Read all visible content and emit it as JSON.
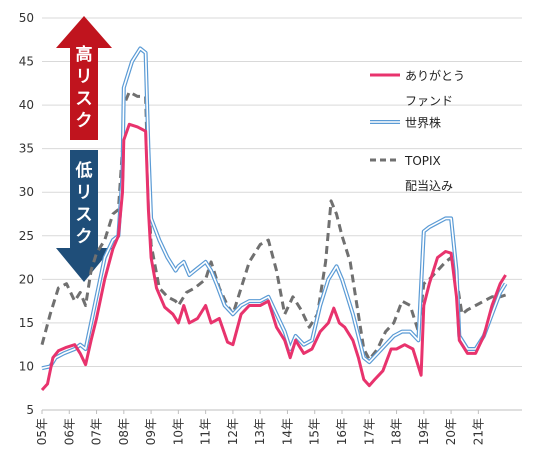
{
  "chart_data": {
    "type": "line",
    "title": "",
    "xlabel": "",
    "ylabel": "",
    "ylim": [
      5,
      50
    ],
    "yticks": [
      5,
      10,
      15,
      20,
      25,
      30,
      35,
      40,
      45,
      50
    ],
    "xlim": [
      2005.0,
      2022.6
    ],
    "xticks": [
      {
        "x": 2005.0,
        "label": "05年"
      },
      {
        "x": 2006.0,
        "label": "06年"
      },
      {
        "x": 2007.0,
        "label": "07年"
      },
      {
        "x": 2008.0,
        "label": "08年"
      },
      {
        "x": 2009.0,
        "label": "09年"
      },
      {
        "x": 2010.0,
        "label": "10年"
      },
      {
        "x": 2011.0,
        "label": "11年"
      },
      {
        "x": 2012.0,
        "label": "12年"
      },
      {
        "x": 2013.0,
        "label": "13年"
      },
      {
        "x": 2014.0,
        "label": "14年"
      },
      {
        "x": 2015.0,
        "label": "15年"
      },
      {
        "x": 2016.0,
        "label": "16年"
      },
      {
        "x": 2017.0,
        "label": "17年"
      },
      {
        "x": 2018.0,
        "label": "18年"
      },
      {
        "x": 2019.0,
        "label": "19年"
      },
      {
        "x": 2020.0,
        "label": "20年"
      },
      {
        "x": 2021.0,
        "label": "21年"
      }
    ],
    "grid": true,
    "legend_position": "right",
    "risk_arrow": {
      "up_label": "高リスク",
      "down_label": "低リスク",
      "up_color": "#c0141e",
      "down_color": "#1f4e79"
    },
    "series": [
      {
        "name": "ありがとう\nファンド",
        "color": "#e8336d",
        "style": "solid",
        "points": [
          [
            2005.0,
            7.3
          ],
          [
            2005.2,
            8.0
          ],
          [
            2005.4,
            11.0
          ],
          [
            2005.6,
            11.8
          ],
          [
            2005.9,
            12.2
          ],
          [
            2006.2,
            12.5
          ],
          [
            2006.4,
            11.5
          ],
          [
            2006.6,
            10.2
          ],
          [
            2006.8,
            13.0
          ],
          [
            2007.0,
            15.5
          ],
          [
            2007.3,
            20.0
          ],
          [
            2007.6,
            23.5
          ],
          [
            2007.8,
            25.0
          ],
          [
            2007.95,
            30.0
          ],
          [
            2008.0,
            36.0
          ],
          [
            2008.2,
            37.8
          ],
          [
            2008.5,
            37.5
          ],
          [
            2008.8,
            37.0
          ],
          [
            2008.9,
            28.0
          ],
          [
            2009.0,
            22.5
          ],
          [
            2009.2,
            19.0
          ],
          [
            2009.5,
            16.8
          ],
          [
            2009.8,
            16.0
          ],
          [
            2010.0,
            15.0
          ],
          [
            2010.2,
            17.0
          ],
          [
            2010.4,
            15.0
          ],
          [
            2010.7,
            15.5
          ],
          [
            2011.0,
            17.0
          ],
          [
            2011.2,
            15.0
          ],
          [
            2011.5,
            15.5
          ],
          [
            2011.8,
            12.8
          ],
          [
            2012.0,
            12.5
          ],
          [
            2012.3,
            16.0
          ],
          [
            2012.6,
            17.0
          ],
          [
            2013.0,
            17.0
          ],
          [
            2013.3,
            17.5
          ],
          [
            2013.6,
            14.5
          ],
          [
            2013.9,
            13.0
          ],
          [
            2014.1,
            11.0
          ],
          [
            2014.3,
            13.0
          ],
          [
            2014.6,
            11.5
          ],
          [
            2014.9,
            12.0
          ],
          [
            2015.2,
            14.0
          ],
          [
            2015.5,
            15.0
          ],
          [
            2015.7,
            16.7
          ],
          [
            2015.9,
            15.0
          ],
          [
            2016.1,
            14.5
          ],
          [
            2016.4,
            13.0
          ],
          [
            2016.6,
            11.0
          ],
          [
            2016.8,
            8.5
          ],
          [
            2017.0,
            7.8
          ],
          [
            2017.2,
            8.5
          ],
          [
            2017.5,
            9.5
          ],
          [
            2017.8,
            12.0
          ],
          [
            2018.0,
            12.0
          ],
          [
            2018.3,
            12.5
          ],
          [
            2018.6,
            12.0
          ],
          [
            2018.9,
            9.0
          ],
          [
            2019.0,
            17.0
          ],
          [
            2019.2,
            19.5
          ],
          [
            2019.5,
            22.5
          ],
          [
            2019.8,
            23.2
          ],
          [
            2020.0,
            23.0
          ],
          [
            2020.2,
            18.0
          ],
          [
            2020.3,
            13.0
          ],
          [
            2020.6,
            11.5
          ],
          [
            2020.9,
            11.5
          ],
          [
            2021.2,
            13.5
          ],
          [
            2021.5,
            17.0
          ],
          [
            2021.8,
            19.5
          ],
          [
            2022.0,
            20.5
          ]
        ]
      },
      {
        "name": "世界株",
        "color": "#5b9bd5",
        "style": "double",
        "points": [
          [
            2005.0,
            9.8
          ],
          [
            2005.3,
            10.0
          ],
          [
            2005.5,
            11.0
          ],
          [
            2005.8,
            11.5
          ],
          [
            2006.2,
            12.0
          ],
          [
            2006.4,
            12.5
          ],
          [
            2006.6,
            12.0
          ],
          [
            2006.8,
            15.0
          ],
          [
            2007.0,
            18.0
          ],
          [
            2007.3,
            22.5
          ],
          [
            2007.6,
            24.5
          ],
          [
            2007.8,
            25.0
          ],
          [
            2007.95,
            32.0
          ],
          [
            2008.0,
            42.0
          ],
          [
            2008.3,
            45.0
          ],
          [
            2008.6,
            46.5
          ],
          [
            2008.8,
            46.0
          ],
          [
            2008.9,
            35.0
          ],
          [
            2009.0,
            27.0
          ],
          [
            2009.3,
            24.5
          ],
          [
            2009.6,
            22.5
          ],
          [
            2009.9,
            21.0
          ],
          [
            2010.0,
            21.5
          ],
          [
            2010.2,
            22.0
          ],
          [
            2010.4,
            20.5
          ],
          [
            2010.6,
            21.0
          ],
          [
            2011.0,
            22.0
          ],
          [
            2011.2,
            21.0
          ],
          [
            2011.4,
            19.5
          ],
          [
            2011.7,
            17.0
          ],
          [
            2012.0,
            16.0
          ],
          [
            2012.3,
            17.0
          ],
          [
            2012.6,
            17.5
          ],
          [
            2013.0,
            17.5
          ],
          [
            2013.3,
            18.0
          ],
          [
            2013.6,
            16.0
          ],
          [
            2013.9,
            14.0
          ],
          [
            2014.1,
            12.0
          ],
          [
            2014.3,
            13.5
          ],
          [
            2014.6,
            12.5
          ],
          [
            2014.9,
            13.0
          ],
          [
            2015.2,
            17.0
          ],
          [
            2015.5,
            20.0
          ],
          [
            2015.8,
            21.5
          ],
          [
            2016.0,
            20.0
          ],
          [
            2016.2,
            18.0
          ],
          [
            2016.4,
            16.0
          ],
          [
            2016.6,
            13.5
          ],
          [
            2016.8,
            11.0
          ],
          [
            2017.0,
            10.5
          ],
          [
            2017.3,
            11.5
          ],
          [
            2017.6,
            12.5
          ],
          [
            2017.9,
            13.5
          ],
          [
            2018.2,
            14.0
          ],
          [
            2018.5,
            14.0
          ],
          [
            2018.8,
            13.0
          ],
          [
            2019.0,
            25.5
          ],
          [
            2019.2,
            26.0
          ],
          [
            2019.5,
            26.5
          ],
          [
            2019.8,
            27.0
          ],
          [
            2020.0,
            27.0
          ],
          [
            2020.2,
            21.0
          ],
          [
            2020.3,
            13.5
          ],
          [
            2020.6,
            12.0
          ],
          [
            2020.9,
            12.0
          ],
          [
            2021.2,
            13.5
          ],
          [
            2021.5,
            16.0
          ],
          [
            2021.8,
            18.5
          ],
          [
            2022.0,
            19.5
          ]
        ]
      },
      {
        "name": "TOPIX\n配当込み",
        "color": "#707070",
        "style": "dashed",
        "points": [
          [
            2005.0,
            12.5
          ],
          [
            2005.3,
            16.0
          ],
          [
            2005.6,
            19.0
          ],
          [
            2005.9,
            19.5
          ],
          [
            2006.2,
            17.5
          ],
          [
            2006.4,
            18.5
          ],
          [
            2006.6,
            17.0
          ],
          [
            2006.8,
            21.0
          ],
          [
            2007.0,
            23.0
          ],
          [
            2007.3,
            24.5
          ],
          [
            2007.6,
            27.5
          ],
          [
            2007.8,
            28.0
          ],
          [
            2007.95,
            35.0
          ],
          [
            2008.0,
            40.0
          ],
          [
            2008.2,
            41.5
          ],
          [
            2008.5,
            41.0
          ],
          [
            2008.8,
            41.0
          ],
          [
            2008.9,
            30.0
          ],
          [
            2009.0,
            24.0
          ],
          [
            2009.3,
            19.0
          ],
          [
            2009.6,
            18.0
          ],
          [
            2009.9,
            17.5
          ],
          [
            2010.0,
            17.0
          ],
          [
            2010.3,
            18.5
          ],
          [
            2010.6,
            19.0
          ],
          [
            2011.0,
            20.0
          ],
          [
            2011.2,
            22.0
          ],
          [
            2011.5,
            19.0
          ],
          [
            2011.8,
            17.0
          ],
          [
            2012.0,
            16.0
          ],
          [
            2012.3,
            19.0
          ],
          [
            2012.6,
            22.0
          ],
          [
            2012.9,
            23.5
          ],
          [
            2013.0,
            24.0
          ],
          [
            2013.3,
            24.5
          ],
          [
            2013.6,
            21.0
          ],
          [
            2013.9,
            16.0
          ],
          [
            2014.2,
            18.0
          ],
          [
            2014.5,
            16.5
          ],
          [
            2014.8,
            14.5
          ],
          [
            2015.1,
            16.0
          ],
          [
            2015.4,
            22.0
          ],
          [
            2015.6,
            29.0
          ],
          [
            2015.8,
            27.5
          ],
          [
            2016.0,
            25.0
          ],
          [
            2016.3,
            22.0
          ],
          [
            2016.5,
            18.0
          ],
          [
            2016.8,
            12.0
          ],
          [
            2017.0,
            10.8
          ],
          [
            2017.3,
            12.0
          ],
          [
            2017.6,
            14.0
          ],
          [
            2017.9,
            15.0
          ],
          [
            2018.2,
            17.5
          ],
          [
            2018.5,
            17.0
          ],
          [
            2018.8,
            14.0
          ],
          [
            2019.0,
            19.5
          ],
          [
            2019.2,
            20.0
          ],
          [
            2019.5,
            21.0
          ],
          [
            2019.8,
            22.0
          ],
          [
            2020.0,
            22.5
          ],
          [
            2020.2,
            20.0
          ],
          [
            2020.4,
            16.0
          ],
          [
            2020.6,
            16.5
          ],
          [
            2020.9,
            17.0
          ],
          [
            2021.2,
            17.5
          ],
          [
            2021.5,
            18.0
          ],
          [
            2021.8,
            18.0
          ],
          [
            2022.0,
            18.2
          ]
        ]
      }
    ]
  }
}
